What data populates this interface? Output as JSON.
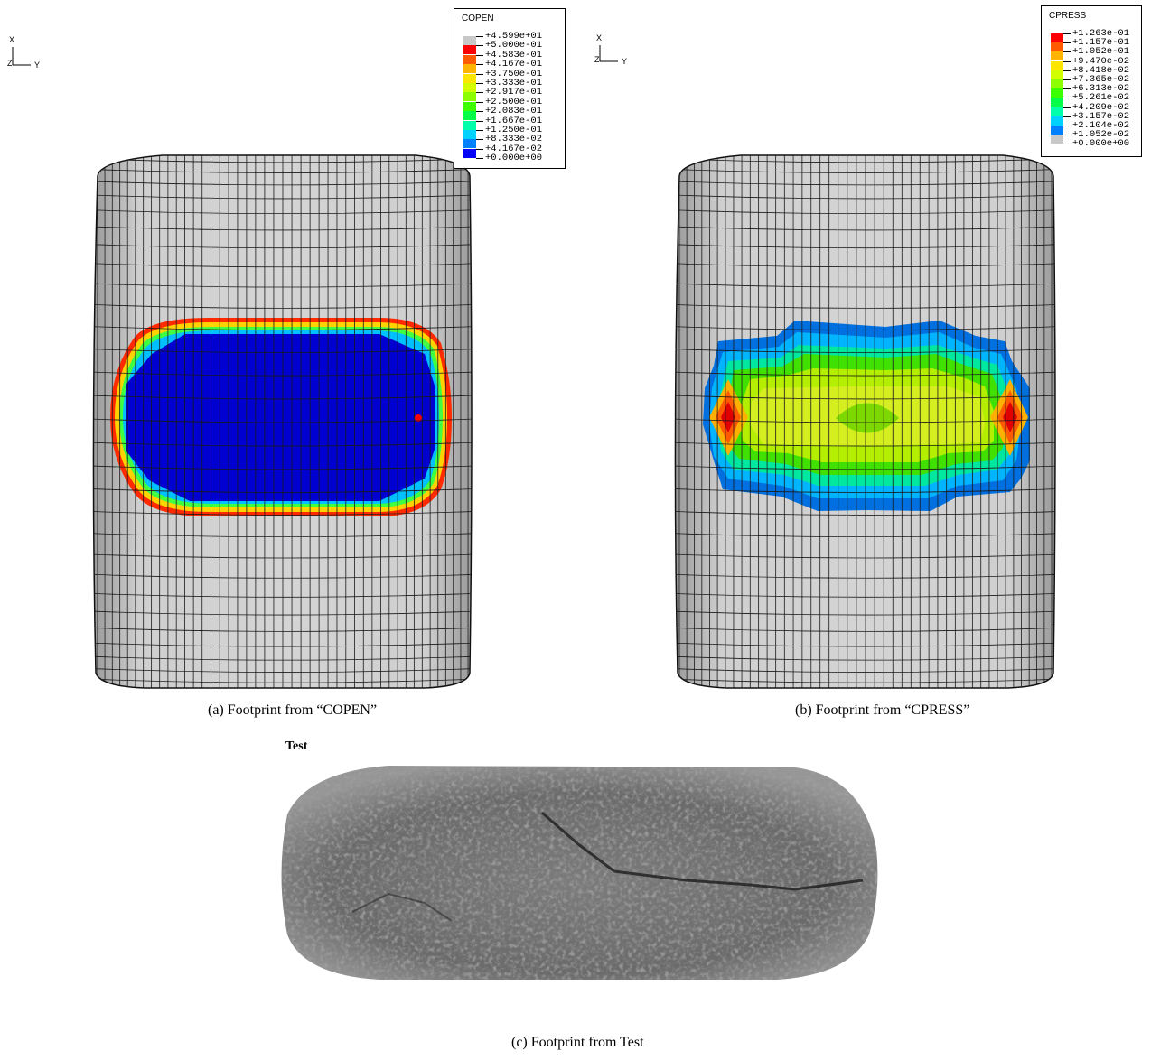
{
  "panels": {
    "a": {
      "caption": "(a) Footprint from “COPEN”",
      "legend": {
        "title": "COPEN",
        "entries": [
          {
            "value": "+4.599e+01",
            "color": "#c8c8c8"
          },
          {
            "value": "+5.000e-01",
            "color": "#ff0000"
          },
          {
            "value": "+4.583e-01",
            "color": "#ff5a00"
          },
          {
            "value": "+4.167e-01",
            "color": "#ffb400"
          },
          {
            "value": "+3.750e-01",
            "color": "#ffe600"
          },
          {
            "value": "+3.333e-01",
            "color": "#d2ff00"
          },
          {
            "value": "+2.917e-01",
            "color": "#8cff00"
          },
          {
            "value": "+2.500e-01",
            "color": "#3cff00"
          },
          {
            "value": "+2.083e-01",
            "color": "#00ff46"
          },
          {
            "value": "+1.667e-01",
            "color": "#00ffaa"
          },
          {
            "value": "+1.250e-01",
            "color": "#00d2ff"
          },
          {
            "value": "+8.333e-02",
            "color": "#0080ff"
          },
          {
            "value": "+4.167e-02",
            "color": "#0000ff"
          },
          {
            "value": "+0.000e+00",
            "color": null
          }
        ]
      },
      "triad": {
        "x": "X",
        "y": "Y",
        "z": "Z"
      }
    },
    "b": {
      "caption": "(b) Footprint from “CPRESS”",
      "legend": {
        "title": "CPRESS",
        "entries": [
          {
            "value": "+1.263e-01",
            "color": "#ff0000"
          },
          {
            "value": "+1.157e-01",
            "color": "#ff5a00"
          },
          {
            "value": "+1.052e-01",
            "color": "#ffb400"
          },
          {
            "value": "+9.470e-02",
            "color": "#ffe600"
          },
          {
            "value": "+8.418e-02",
            "color": "#d2ff00"
          },
          {
            "value": "+7.365e-02",
            "color": "#8cff00"
          },
          {
            "value": "+6.313e-02",
            "color": "#3cff00"
          },
          {
            "value": "+5.261e-02",
            "color": "#00ff46"
          },
          {
            "value": "+4.209e-02",
            "color": "#00ffaa"
          },
          {
            "value": "+3.157e-02",
            "color": "#00d2ff"
          },
          {
            "value": "+2.104e-02",
            "color": "#0080ff"
          },
          {
            "value": "+1.052e-02",
            "color": "#c8c8c8"
          },
          {
            "value": "+0.000e+00",
            "color": null
          }
        ]
      },
      "triad": {
        "x": "X",
        "y": "Y",
        "z": "Z"
      }
    },
    "c": {
      "caption": "(c) Footprint from Test",
      "label": "Test"
    }
  },
  "colors": {
    "mesh_fill": "#c9c9c9",
    "mesh_line": "#1a1a1a",
    "contact_blue": "#0000d0",
    "contact_red": "#e00000"
  }
}
